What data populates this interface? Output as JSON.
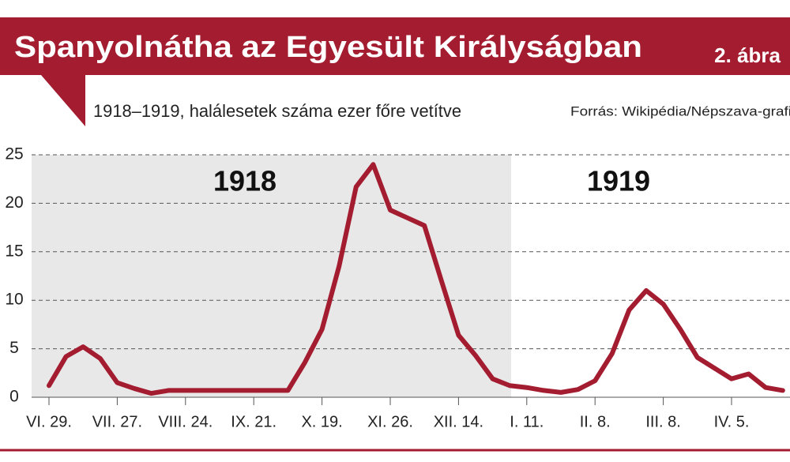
{
  "chart_data": {
    "type": "line",
    "title": "Spanyolnátha az Egyesült Királyságban",
    "figure_label": "2. ábra",
    "subtitle": "1918–1919, halálesetek száma ezer főre vetítve",
    "source": "Forrás: Wikipédia/Népszava-grafika",
    "annotations": [
      "1918",
      "1919"
    ],
    "categories": [
      "VI. 29.",
      null,
      null,
      null,
      "VII. 27.",
      null,
      null,
      null,
      "VIII. 24.",
      null,
      null,
      null,
      "IX. 21.",
      null,
      null,
      null,
      "X. 19.",
      null,
      null,
      null,
      "XI. 26.",
      null,
      null,
      null,
      "XII. 14.",
      null,
      null,
      null,
      "I. 11.",
      null,
      null,
      null,
      "II. 8.",
      null,
      null,
      null,
      "III. 8.",
      null,
      null,
      null,
      "IV. 5.",
      null,
      null,
      null
    ],
    "series": [
      {
        "name": "halálesetek",
        "color": "#a31c2f",
        "values": [
          1.2,
          4.2,
          5.2,
          4.0,
          1.5,
          0.9,
          0.4,
          0.7,
          0.7,
          0.7,
          0.7,
          0.7,
          0.7,
          0.7,
          0.7,
          3.6,
          7,
          13.5,
          21.7,
          24,
          19.3,
          18.5,
          17.7,
          12,
          6.4,
          4.3,
          1.9,
          1.2,
          1.0,
          0.7,
          0.5,
          0.8,
          1.7,
          4.5,
          9,
          11,
          9.6,
          7,
          4.1,
          3,
          1.9,
          2.4,
          1,
          0.7
        ]
      }
    ],
    "ylim": [
      0,
      25
    ],
    "yticks": [
      0,
      5,
      10,
      15,
      20,
      25
    ],
    "grid": true
  }
}
